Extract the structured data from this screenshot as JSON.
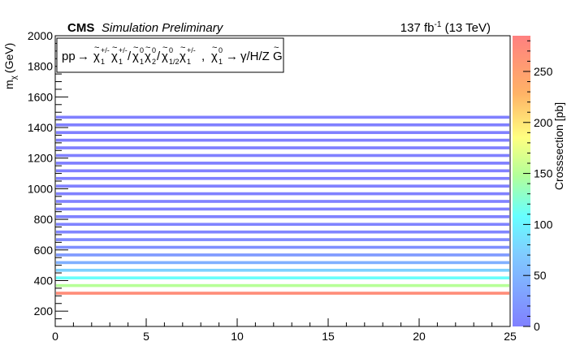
{
  "header": {
    "experiment": "CMS",
    "status": "Simulation Preliminary",
    "lumi": "137 fb",
    "lumi_exp": "-1",
    "energy": " (13 TeV)"
  },
  "process": {
    "prefix": "pp",
    "arrow": "→",
    "chi": "χ",
    "tilde": "~",
    "pm": "+/-",
    "zero": "0",
    "one": "1",
    "two": "2",
    "onetwo": "1/2",
    "slash": "/",
    "sep": ",",
    "decay_products": "γ/H/Z",
    "gravitino": "G"
  },
  "chart_data": {
    "type": "heatmap",
    "xlabel": "",
    "ylabel": "m",
    "ylabel_sub": "χ",
    "ylabel_unit": "(GeV)",
    "zlabel": "Crosssection [pb]",
    "xlim": [
      0,
      25
    ],
    "ylim": [
      100,
      2000
    ],
    "zlim": [
      0,
      285
    ],
    "x_ticks": [
      0,
      5,
      10,
      15,
      20,
      25
    ],
    "x_tick_labels": [
      "0",
      "5",
      "10",
      "15",
      "20",
      "25"
    ],
    "y_ticks": [
      200,
      400,
      600,
      800,
      1000,
      1200,
      1400,
      1600,
      1800,
      2000
    ],
    "y_tick_labels": [
      "200",
      "400",
      "600",
      "800",
      "1000",
      "1200",
      "1400",
      "1600",
      "1800",
      "2000"
    ],
    "z_ticks": [
      0,
      50,
      100,
      150,
      200,
      250
    ],
    "z_tick_labels": [
      "0",
      "50",
      "100",
      "150",
      "200",
      "250"
    ],
    "band_half_width": 15,
    "bands": [
      {
        "y": 312,
        "z": 270
      },
      {
        "y": 362,
        "z": 150
      },
      {
        "y": 412,
        "z": 110
      },
      {
        "y": 462,
        "z": 75
      },
      {
        "y": 512,
        "z": 45
      },
      {
        "y": 562,
        "z": 25
      },
      {
        "y": 612,
        "z": 15
      },
      {
        "y": 662,
        "z": 10
      },
      {
        "y": 712,
        "z": 6
      },
      {
        "y": 762,
        "z": 4
      },
      {
        "y": 812,
        "z": 3
      },
      {
        "y": 862,
        "z": 2
      },
      {
        "y": 912,
        "z": 1.5
      },
      {
        "y": 962,
        "z": 1
      },
      {
        "y": 1012,
        "z": 0.8
      },
      {
        "y": 1062,
        "z": 0.6
      },
      {
        "y": 1112,
        "z": 0.4
      },
      {
        "y": 1162,
        "z": 0.3
      },
      {
        "y": 1212,
        "z": 0.2
      },
      {
        "y": 1262,
        "z": 0.15
      },
      {
        "y": 1312,
        "z": 0.1
      },
      {
        "y": 1362,
        "z": 0.08
      },
      {
        "y": 1412,
        "z": 0.06
      },
      {
        "y": 1462,
        "z": 0.04
      }
    ]
  }
}
